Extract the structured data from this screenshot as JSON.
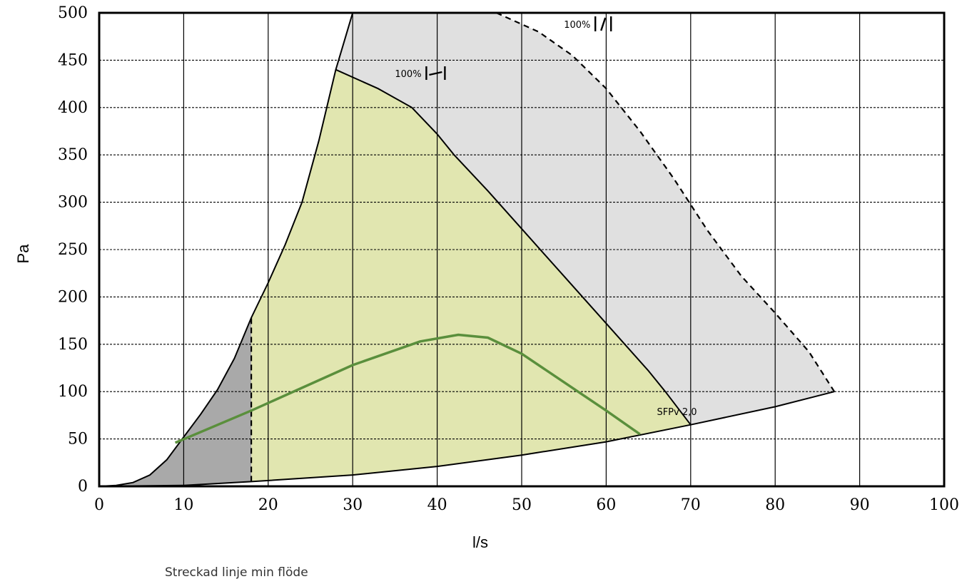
{
  "chart_data": {
    "type": "area",
    "xlabel": "l/s",
    "ylabel": "Pa",
    "xlim": [
      0,
      100
    ],
    "ylim": [
      0,
      500
    ],
    "x_ticks": [
      0,
      10,
      20,
      30,
      40,
      50,
      60,
      70,
      80,
      90,
      100
    ],
    "y_ticks": [
      0,
      50,
      100,
      150,
      200,
      250,
      300,
      350,
      400,
      450,
      500
    ],
    "grid": {
      "x": "solid",
      "y": "dashed"
    },
    "colors": {
      "grey_region": "#e0e0e0",
      "green_region": "#e1e6b0",
      "min_flow_region": "#a9a9a9",
      "sfp_line": "#5a8f3c",
      "outline": "#000000"
    },
    "curves": {
      "upper_system_curve": [
        [
          0,
          0
        ],
        [
          2,
          1
        ],
        [
          4,
          4
        ],
        [
          6,
          12
        ],
        [
          8,
          28
        ],
        [
          10,
          52
        ],
        [
          12,
          76
        ],
        [
          14,
          102
        ],
        [
          16,
          135
        ],
        [
          18,
          178
        ],
        [
          20,
          215
        ],
        [
          22,
          255
        ],
        [
          24,
          300
        ],
        [
          26,
          365
        ],
        [
          28,
          440
        ],
        [
          29,
          470
        ],
        [
          30,
          500
        ]
      ],
      "lower_system_curve": [
        [
          0,
          0
        ],
        [
          10,
          1
        ],
        [
          18,
          5
        ],
        [
          30,
          12
        ],
        [
          40,
          21
        ],
        [
          50,
          33
        ],
        [
          60,
          47
        ],
        [
          70,
          65
        ],
        [
          80,
          84
        ],
        [
          87,
          100
        ]
      ],
      "max_speed_full_curve": [
        [
          47,
          500
        ],
        [
          52,
          480
        ],
        [
          56,
          455
        ],
        [
          60,
          420
        ],
        [
          64,
          375
        ],
        [
          68,
          325
        ],
        [
          72,
          270
        ],
        [
          76,
          222
        ],
        [
          80,
          183
        ],
        [
          84,
          142
        ],
        [
          87,
          100
        ]
      ],
      "max_speed_limited_curve": [
        [
          28,
          440
        ],
        [
          33,
          420
        ],
        [
          37,
          400
        ],
        [
          40,
          372
        ],
        [
          42,
          350
        ],
        [
          46,
          312
        ],
        [
          50,
          272
        ],
        [
          55,
          222
        ],
        [
          60,
          172
        ],
        [
          65,
          122
        ],
        [
          67,
          100
        ],
        [
          70,
          65
        ]
      ],
      "min_flow_line": [
        [
          18,
          5
        ],
        [
          18,
          178
        ]
      ],
      "sfp_curve": [
        [
          9,
          46
        ],
        [
          18,
          80
        ],
        [
          30,
          128
        ],
        [
          38,
          153
        ],
        [
          42.5,
          160
        ],
        [
          46,
          157
        ],
        [
          50,
          140
        ],
        [
          55,
          110
        ],
        [
          60,
          80
        ],
        [
          64,
          55
        ]
      ]
    },
    "annotations": [
      {
        "text": "100%",
        "x": 55,
        "y": 488
      },
      {
        "text": "100%",
        "x": 35,
        "y": 436
      },
      {
        "text": "SFPv 2,0",
        "x": 66,
        "y": 79
      }
    ]
  },
  "footnote": "Streckad linje min flöde"
}
